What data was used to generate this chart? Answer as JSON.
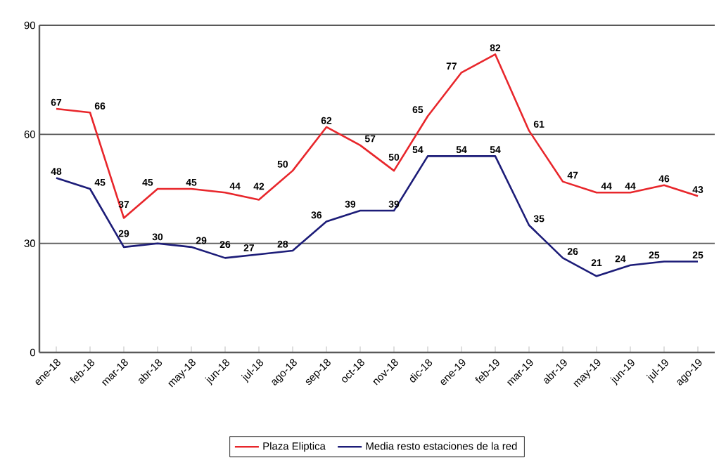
{
  "chart_data": {
    "type": "line",
    "categories": [
      "ene-18",
      "feb-18",
      "mar-18",
      "abr-18",
      "may-18",
      "jun-18",
      "jul-18",
      "ago-18",
      "sep-18",
      "oct-18",
      "nov-18",
      "dic-18",
      "ene-19",
      "feb-19",
      "mar-19",
      "abr-19",
      "may-19",
      "jun-19",
      "jul-19",
      "ago-19"
    ],
    "series": [
      {
        "name": "Plaza Eliptica",
        "color": "#e8262b",
        "values": [
          67,
          66,
          37,
          45,
          45,
          44,
          42,
          50,
          62,
          57,
          50,
          65,
          77,
          82,
          61,
          47,
          44,
          44,
          46,
          43
        ]
      },
      {
        "name": "Media resto estaciones de la red",
        "color": "#1c1c78",
        "values": [
          48,
          45,
          29,
          30,
          29,
          26,
          27,
          28,
          36,
          39,
          39,
          54,
          54,
          54,
          35,
          26,
          21,
          24,
          25,
          25
        ]
      }
    ],
    "ylim": [
      0,
      90
    ],
    "yticks": [
      0,
      30,
      60,
      90
    ],
    "grid": "y",
    "legend": "bottom",
    "data_labels": true,
    "marker": "none",
    "line_style": "solid"
  }
}
